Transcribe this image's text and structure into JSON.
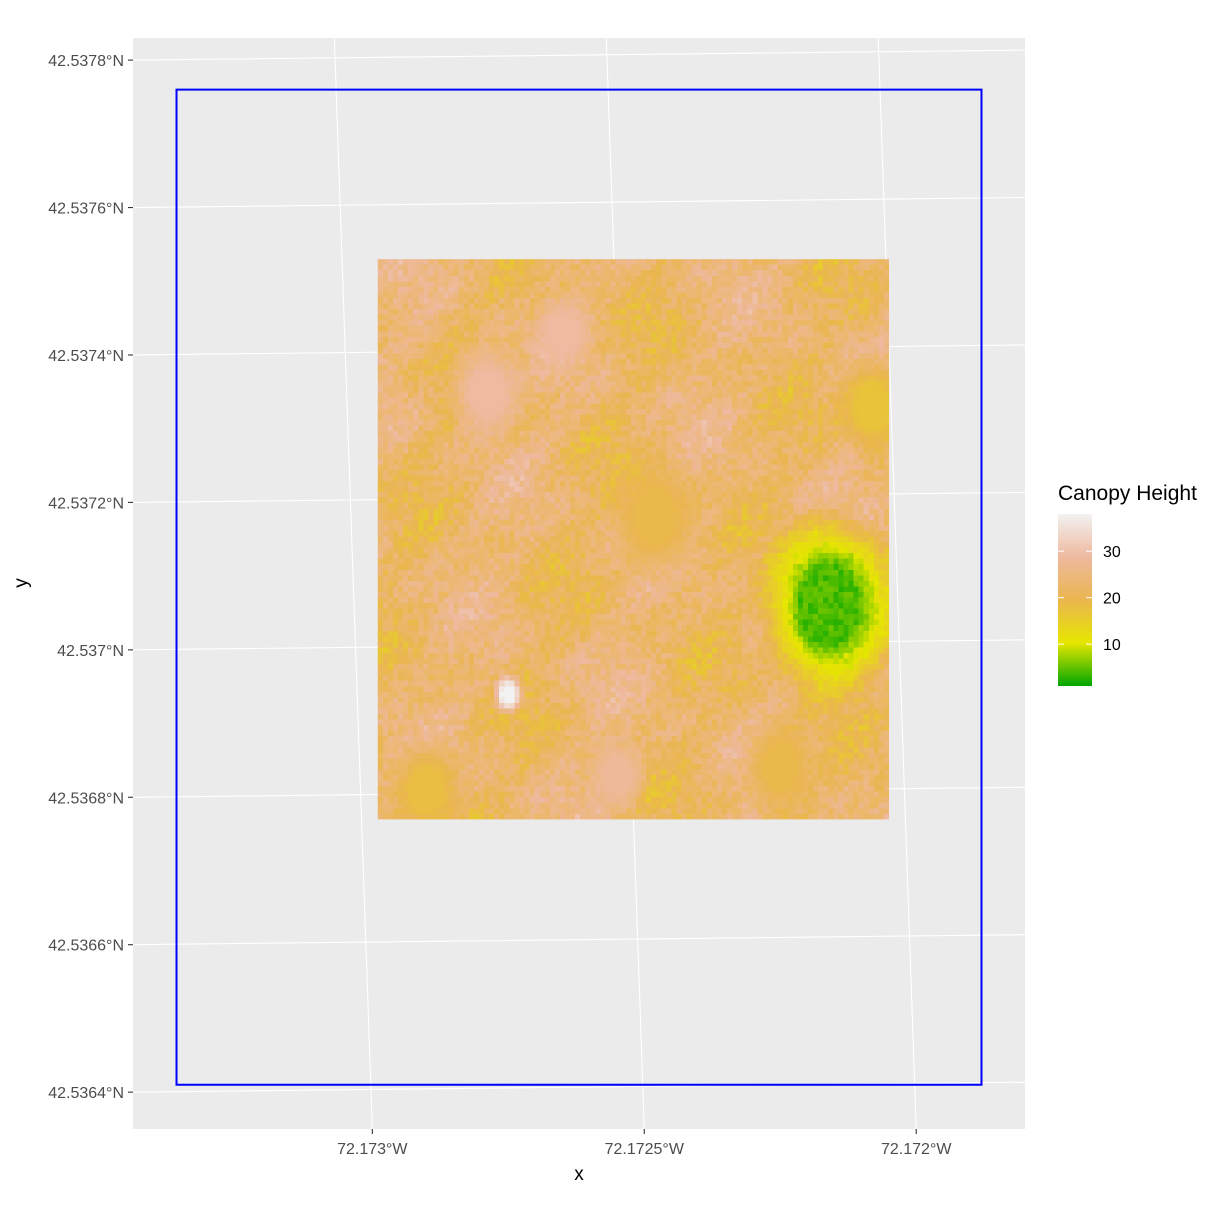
{
  "chart_data": {
    "type": "heatmap",
    "title": "",
    "xlabel": "x",
    "ylabel": "y",
    "x_ticks": [
      {
        "value": -72.173,
        "label": "72.173°W"
      },
      {
        "value": -72.1725,
        "label": "72.1725°W"
      },
      {
        "value": -72.172,
        "label": "72.172°W"
      }
    ],
    "y_ticks": [
      {
        "value": 42.5378,
        "label": "42.5378°N"
      },
      {
        "value": 42.5376,
        "label": "42.5376°N"
      },
      {
        "value": 42.5374,
        "label": "42.5374°N"
      },
      {
        "value": 42.5372,
        "label": "42.5372°N"
      },
      {
        "value": 42.537,
        "label": "42.537°N"
      },
      {
        "value": 42.5368,
        "label": "42.5368°N"
      },
      {
        "value": 42.5366,
        "label": "42.5366°N"
      },
      {
        "value": 42.5364,
        "label": "42.5364°N"
      }
    ],
    "xlim": [
      -72.17344,
      -72.1718
    ],
    "ylim": [
      42.53635,
      42.53783
    ],
    "grid": true,
    "raster_extent": {
      "xmin": -72.17299,
      "xmax": -72.17205,
      "ymin": 42.53677,
      "ymax": 42.53753
    },
    "value_range": [
      1,
      38
    ],
    "background_value": 23,
    "features": [
      {
        "kind": "gap",
        "x": -72.17216,
        "y": 42.53706,
        "r": 9e-05,
        "value": 4
      },
      {
        "kind": "tall",
        "x": -72.17275,
        "y": 42.53694,
        "r": 2e-05,
        "value": 38
      },
      {
        "kind": "tall",
        "x": -72.17279,
        "y": 42.53735,
        "r": 5e-05,
        "value": 29
      },
      {
        "kind": "tall",
        "x": -72.17265,
        "y": 42.53743,
        "r": 4e-05,
        "value": 29
      },
      {
        "kind": "tall",
        "x": -72.17255,
        "y": 42.53683,
        "r": 4e-05,
        "value": 28
      },
      {
        "kind": "low",
        "x": -72.17208,
        "y": 42.53733,
        "r": 5e-05,
        "value": 17
      },
      {
        "kind": "low",
        "x": -72.17248,
        "y": 42.53718,
        "r": 6e-05,
        "value": 19
      },
      {
        "kind": "low",
        "x": -72.1729,
        "y": 42.53681,
        "r": 5e-05,
        "value": 18
      },
      {
        "kind": "low",
        "x": -72.17225,
        "y": 42.53684,
        "r": 5e-05,
        "value": 19
      }
    ],
    "boundary": {
      "color": "#0000ff",
      "corners": [
        {
          "lon": -72.17336,
          "lat": 42.53776
        },
        {
          "lon": -72.17188,
          "lat": 42.53776
        },
        {
          "lon": -72.17188,
          "lat": 42.53641
        },
        {
          "lon": -72.17336,
          "lat": 42.53641
        }
      ]
    },
    "legend": {
      "title": "Canopy Height",
      "placement": "right",
      "breaks": [
        {
          "value": 30,
          "label": "30"
        },
        {
          "value": 20,
          "label": "20"
        },
        {
          "value": 10,
          "label": "10"
        }
      ],
      "colors": [
        "#00a600",
        "#e6e600",
        "#eab64f",
        "#eeb99f",
        "#f2f2f2"
      ]
    }
  }
}
